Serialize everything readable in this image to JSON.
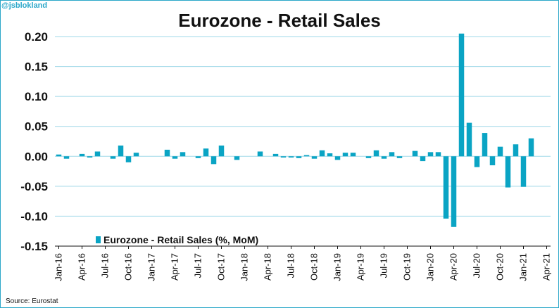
{
  "header": {
    "handle": "@jsblokland",
    "source": "Source: Eurostat"
  },
  "colors": {
    "bar": "#0aa4c4",
    "grid": "#9fd8e8",
    "frame": "#2aa7c9"
  },
  "chart_data": {
    "type": "bar",
    "title": "Eurozone - Retail Sales",
    "xlabel": "",
    "ylabel": "",
    "ylim": [
      -0.15,
      0.2
    ],
    "yticks": [
      "0.20",
      "0.15",
      "0.10",
      "0.05",
      "0.00",
      "-0.05",
      "-0.10",
      "-0.15"
    ],
    "ytick_values": [
      0.2,
      0.15,
      0.1,
      0.05,
      0.0,
      -0.05,
      -0.1,
      -0.15
    ],
    "grid": true,
    "legend_position": "bottom-left",
    "xtick_labels": [
      "Jan-16",
      "Apr-16",
      "Jul-16",
      "Oct-16",
      "Jan-17",
      "Apr-17",
      "Jul-17",
      "Oct-17",
      "Jan-18",
      "Apr-18",
      "Jul-18",
      "Oct-18",
      "Jan-19",
      "Apr-19",
      "Jul-19",
      "Oct-19",
      "Jan-20",
      "Apr-20",
      "Jul-20",
      "Oct-20",
      "Jan-21",
      "Apr-21"
    ],
    "categories": [
      "Jan-16",
      "Feb-16",
      "Mar-16",
      "Apr-16",
      "May-16",
      "Jun-16",
      "Jul-16",
      "Aug-16",
      "Sep-16",
      "Oct-16",
      "Nov-16",
      "Dec-16",
      "Jan-17",
      "Feb-17",
      "Mar-17",
      "Apr-17",
      "May-17",
      "Jun-17",
      "Jul-17",
      "Aug-17",
      "Sep-17",
      "Oct-17",
      "Nov-17",
      "Dec-17",
      "Jan-18",
      "Feb-18",
      "Mar-18",
      "Apr-18",
      "May-18",
      "Jun-18",
      "Jul-18",
      "Aug-18",
      "Sep-18",
      "Oct-18",
      "Nov-18",
      "Dec-18",
      "Jan-19",
      "Feb-19",
      "Mar-19",
      "Apr-19",
      "May-19",
      "Jun-19",
      "Jul-19",
      "Aug-19",
      "Sep-19",
      "Oct-19",
      "Nov-19",
      "Dec-19",
      "Jan-20",
      "Feb-20",
      "Mar-20",
      "Apr-20",
      "May-20",
      "Jun-20",
      "Jul-20",
      "Aug-20",
      "Sep-20",
      "Oct-20",
      "Nov-20",
      "Dec-20",
      "Jan-21",
      "Feb-21",
      "Mar-21",
      "Apr-21"
    ],
    "series": [
      {
        "name": "Eurozone - Retail Sales (%, MoM)",
        "values": [
          0.003,
          -0.004,
          0.0,
          0.004,
          -0.002,
          0.008,
          0.0,
          -0.004,
          0.018,
          -0.01,
          0.006,
          0.0,
          0.0,
          0.0,
          0.011,
          -0.004,
          0.007,
          0.0,
          -0.003,
          0.013,
          -0.013,
          0.018,
          0.0,
          -0.006,
          0.0,
          0.0,
          0.008,
          0.0,
          0.004,
          -0.002,
          -0.002,
          -0.003,
          0.002,
          -0.004,
          0.01,
          0.005,
          -0.006,
          0.006,
          0.006,
          0.0,
          -0.003,
          0.01,
          -0.004,
          0.007,
          -0.003,
          0.0,
          0.009,
          -0.008,
          0.007,
          0.007,
          -0.104,
          -0.118,
          0.205,
          0.056,
          -0.018,
          0.039,
          -0.015,
          0.016,
          -0.052,
          0.02,
          -0.051,
          0.03,
          0.0,
          0.0
        ]
      }
    ]
  }
}
